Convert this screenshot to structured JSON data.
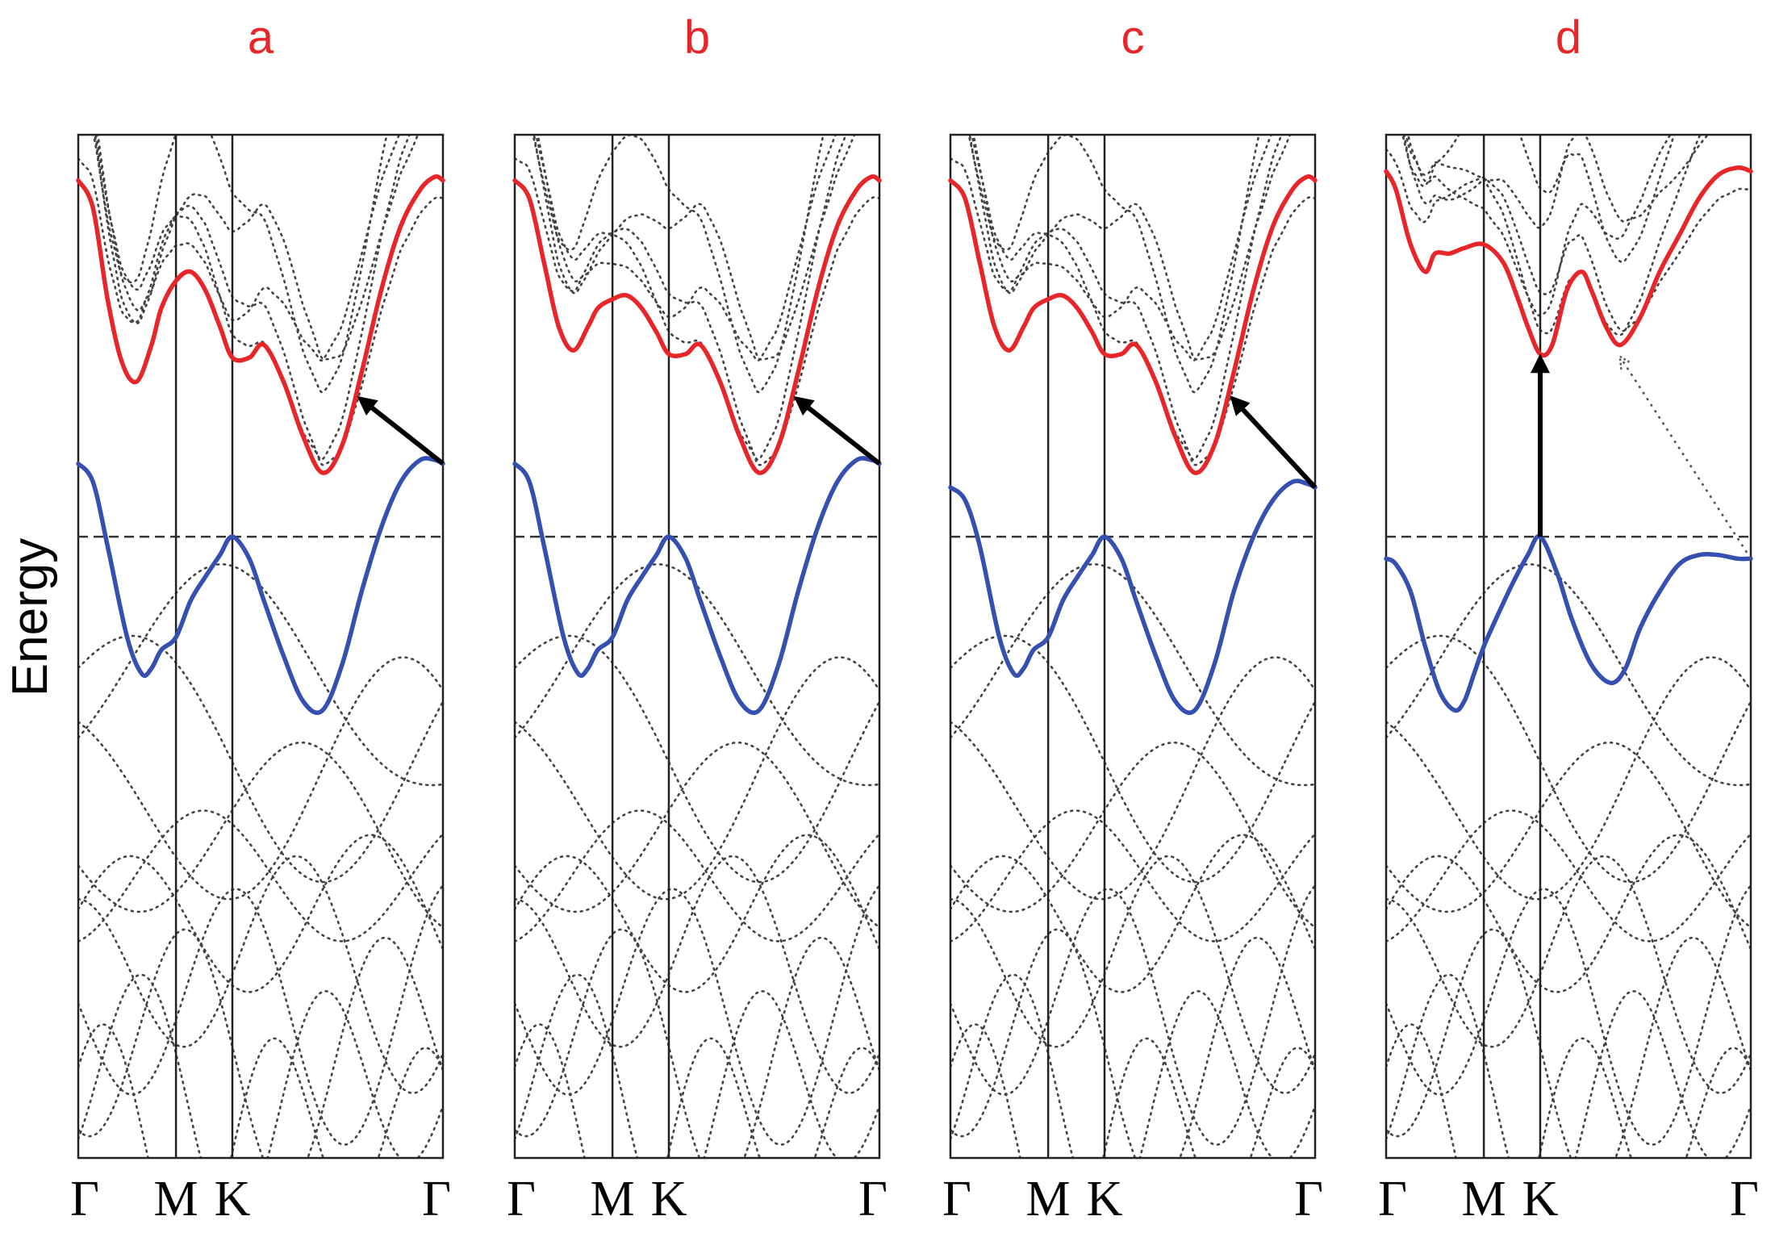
{
  "figure": {
    "ylabel": "Energy",
    "colors": {
      "conduction_band": "#e8262a",
      "valence_band": "#3550b0",
      "panel_label": "#e8262a"
    }
  },
  "chart_data": [
    {
      "type": "line",
      "panel": "a",
      "title": "a",
      "ylabel": "Energy",
      "xticks": [
        "Γ",
        "M",
        "K",
        "Γ"
      ],
      "k_distance": [
        0,
        1.0,
        1.577,
        3.732
      ],
      "ylim": [
        -3.4,
        2.2
      ],
      "fermi_level": 0.0,
      "series": [
        {
          "name": "conduction band",
          "x": [
            0,
            0.15,
            0.3,
            0.45,
            0.6,
            0.75,
            0.85,
            1.0,
            1.15,
            1.3,
            1.45,
            1.577,
            1.75,
            1.9,
            2.1,
            2.3,
            2.5,
            2.7,
            2.9,
            3.1,
            3.3,
            3.5,
            3.65,
            3.732
          ],
          "y": [
            1.95,
            1.8,
            1.3,
            0.95,
            0.85,
            1.05,
            1.25,
            1.4,
            1.45,
            1.35,
            1.15,
            0.98,
            0.98,
            1.05,
            0.85,
            0.55,
            0.35,
            0.5,
            0.9,
            1.35,
            1.7,
            1.9,
            1.97,
            1.95
          ]
        },
        {
          "name": "valence band",
          "x": [
            0,
            0.15,
            0.3,
            0.5,
            0.65,
            0.75,
            0.85,
            1.0,
            1.15,
            1.3,
            1.45,
            1.577,
            1.75,
            1.9,
            2.1,
            2.3,
            2.5,
            2.7,
            2.9,
            3.1,
            3.3,
            3.5,
            3.65,
            3.732
          ],
          "y": [
            0.4,
            0.3,
            -0.05,
            -0.55,
            -0.75,
            -0.72,
            -0.62,
            -0.55,
            -0.35,
            -0.22,
            -0.1,
            0.0,
            -0.12,
            -0.35,
            -0.65,
            -0.9,
            -0.95,
            -0.7,
            -0.3,
            0.05,
            0.3,
            0.42,
            0.42,
            0.4
          ]
        }
      ],
      "transition_arrows": [
        {
          "style": "solid",
          "from": [
            3.732,
            0.4
          ],
          "to": [
            2.9,
            0.75
          ]
        }
      ]
    },
    {
      "type": "line",
      "panel": "b",
      "title": "b",
      "ylabel": "Energy",
      "xticks": [
        "Γ",
        "M",
        "K",
        "Γ"
      ],
      "k_distance": [
        0,
        1.0,
        1.577,
        3.732
      ],
      "ylim": [
        -3.4,
        2.2
      ],
      "fermi_level": 0.0,
      "series": [
        {
          "name": "conduction band",
          "x": [
            0,
            0.15,
            0.3,
            0.45,
            0.6,
            0.75,
            0.85,
            1.0,
            1.15,
            1.3,
            1.45,
            1.577,
            1.75,
            1.9,
            2.1,
            2.3,
            2.5,
            2.7,
            2.9,
            3.1,
            3.3,
            3.5,
            3.65,
            3.732
          ],
          "y": [
            1.95,
            1.85,
            1.5,
            1.15,
            1.02,
            1.15,
            1.25,
            1.3,
            1.32,
            1.25,
            1.12,
            1.0,
            1.0,
            1.05,
            0.85,
            0.55,
            0.35,
            0.5,
            0.9,
            1.35,
            1.7,
            1.9,
            1.97,
            1.95
          ]
        },
        {
          "name": "valence band",
          "x": [
            0,
            0.15,
            0.3,
            0.5,
            0.65,
            0.75,
            0.85,
            1.0,
            1.15,
            1.3,
            1.45,
            1.577,
            1.75,
            1.9,
            2.1,
            2.3,
            2.5,
            2.7,
            2.9,
            3.1,
            3.3,
            3.5,
            3.65,
            3.732
          ],
          "y": [
            0.4,
            0.3,
            -0.05,
            -0.55,
            -0.75,
            -0.72,
            -0.62,
            -0.55,
            -0.35,
            -0.22,
            -0.1,
            0.0,
            -0.12,
            -0.35,
            -0.65,
            -0.9,
            -0.95,
            -0.7,
            -0.3,
            0.05,
            0.3,
            0.42,
            0.42,
            0.4
          ]
        }
      ],
      "transition_arrows": [
        {
          "style": "solid",
          "from": [
            3.732,
            0.4
          ],
          "to": [
            2.9,
            0.75
          ]
        }
      ]
    },
    {
      "type": "line",
      "panel": "c",
      "title": "c",
      "ylabel": "Energy",
      "xticks": [
        "Γ",
        "M",
        "K",
        "Γ"
      ],
      "k_distance": [
        0,
        1.0,
        1.577,
        3.732
      ],
      "ylim": [
        -3.4,
        2.2
      ],
      "fermi_level": 0.0,
      "series": [
        {
          "name": "conduction band",
          "x": [
            0,
            0.15,
            0.3,
            0.45,
            0.6,
            0.75,
            0.85,
            1.0,
            1.15,
            1.3,
            1.45,
            1.577,
            1.75,
            1.9,
            2.1,
            2.3,
            2.5,
            2.7,
            2.9,
            3.1,
            3.3,
            3.5,
            3.65,
            3.732
          ],
          "y": [
            1.95,
            1.85,
            1.5,
            1.15,
            1.02,
            1.15,
            1.25,
            1.3,
            1.32,
            1.25,
            1.12,
            1.0,
            1.0,
            1.05,
            0.85,
            0.55,
            0.35,
            0.5,
            0.9,
            1.35,
            1.7,
            1.9,
            1.97,
            1.95
          ]
        },
        {
          "name": "valence band",
          "x": [
            0,
            0.15,
            0.3,
            0.5,
            0.65,
            0.75,
            0.85,
            1.0,
            1.15,
            1.3,
            1.45,
            1.577,
            1.75,
            1.9,
            2.1,
            2.3,
            2.5,
            2.7,
            2.9,
            3.1,
            3.3,
            3.5,
            3.65,
            3.732
          ],
          "y": [
            0.27,
            0.2,
            -0.05,
            -0.55,
            -0.75,
            -0.72,
            -0.62,
            -0.55,
            -0.35,
            -0.22,
            -0.1,
            0.0,
            -0.12,
            -0.35,
            -0.65,
            -0.9,
            -0.95,
            -0.7,
            -0.3,
            0.0,
            0.2,
            0.3,
            0.29,
            0.27
          ]
        }
      ],
      "transition_arrows": [
        {
          "style": "solid",
          "from": [
            3.732,
            0.27
          ],
          "to": [
            2.9,
            0.75
          ]
        }
      ]
    },
    {
      "type": "line",
      "panel": "d",
      "title": "d",
      "ylabel": "Energy",
      "xticks": [
        "Γ",
        "M",
        "K",
        "Γ"
      ],
      "k_distance": [
        0,
        1.0,
        1.577,
        3.732
      ],
      "ylim": [
        -3.4,
        2.2
      ],
      "fermi_level": 0.0,
      "series": [
        {
          "name": "conduction band",
          "x": [
            0,
            0.1,
            0.25,
            0.4,
            0.5,
            0.65,
            0.8,
            1.0,
            1.2,
            1.35,
            1.45,
            1.577,
            1.7,
            1.85,
            2.0,
            2.1,
            2.25,
            2.4,
            2.6,
            2.8,
            3.0,
            3.2,
            3.4,
            3.6,
            3.732
          ],
          "y": [
            2.0,
            1.9,
            1.6,
            1.45,
            1.55,
            1.55,
            1.58,
            1.6,
            1.5,
            1.3,
            1.15,
            1.0,
            1.05,
            1.35,
            1.45,
            1.35,
            1.15,
            1.05,
            1.2,
            1.45,
            1.65,
            1.85,
            1.98,
            2.02,
            2.0
          ]
        },
        {
          "name": "valence band",
          "x": [
            0,
            0.1,
            0.25,
            0.4,
            0.55,
            0.7,
            0.8,
            0.9,
            1.0,
            1.15,
            1.3,
            1.45,
            1.577,
            1.75,
            1.9,
            2.1,
            2.3,
            2.45,
            2.6,
            2.8,
            3.0,
            3.2,
            3.4,
            3.6,
            3.732
          ],
          "y": [
            -0.12,
            -0.15,
            -0.3,
            -0.6,
            -0.85,
            -0.95,
            -0.9,
            -0.75,
            -0.6,
            -0.42,
            -0.25,
            -0.1,
            0.0,
            -0.2,
            -0.45,
            -0.7,
            -0.8,
            -0.72,
            -0.5,
            -0.3,
            -0.15,
            -0.1,
            -0.1,
            -0.12,
            -0.12
          ]
        }
      ],
      "transition_arrows": [
        {
          "style": "solid",
          "from": [
            1.577,
            0.0
          ],
          "to": [
            1.577,
            0.97
          ]
        },
        {
          "style": "dotted",
          "from": [
            3.732,
            -0.12
          ],
          "to": [
            2.4,
            0.98
          ]
        }
      ]
    }
  ]
}
